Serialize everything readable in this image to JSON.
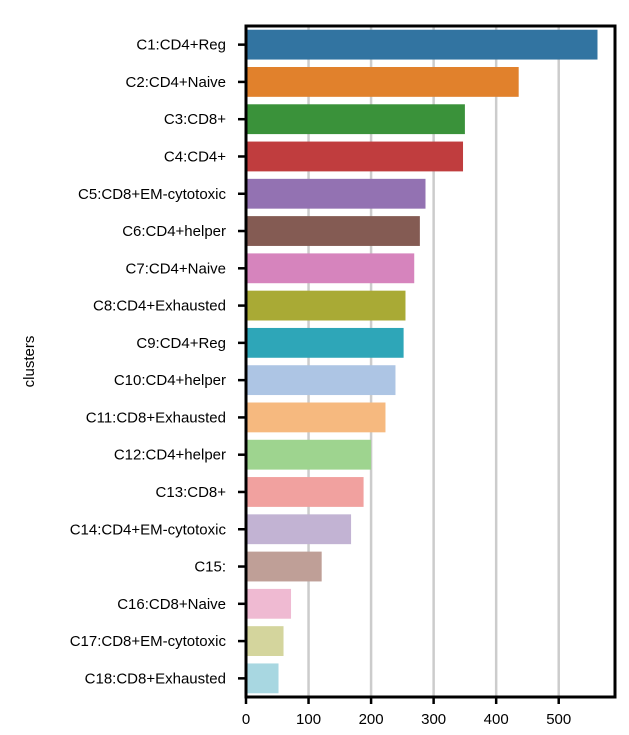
{
  "chart_data": {
    "type": "bar",
    "orientation": "horizontal",
    "ylabel": "clusters",
    "xlabel": "",
    "xlim": [
      0,
      590
    ],
    "xticks": [
      0,
      100,
      200,
      300,
      400,
      500
    ],
    "grid": "vertical",
    "categories": [
      "C1:CD4+Reg",
      "C2:CD4+Naive",
      "C3:CD8+",
      "C4:CD4+",
      "C5:CD8+EM-cytotoxic",
      "C6:CD4+helper",
      "C7:CD4+Naive",
      "C8:CD4+Exhausted",
      "C9:CD4+Reg",
      "C10:CD4+helper",
      "C11:CD8+Exhausted",
      "C12:CD4+helper",
      "C13:CD8+",
      "C14:CD4+EM-cytotoxic",
      "C15:",
      "C16:CD8+Naive",
      "C17:CD8+EM-cytotoxic",
      "C18:CD8+Exhausted"
    ],
    "values": [
      562,
      436,
      350,
      347,
      287,
      278,
      269,
      255,
      252,
      239,
      223,
      200,
      188,
      168,
      121,
      72,
      60,
      52
    ],
    "colors": [
      "#3274a1",
      "#e1812c",
      "#3a923a",
      "#c03d3e",
      "#9372b2",
      "#845b53",
      "#d684bd",
      "#a9aa35",
      "#2ea6b8",
      "#adc5e4",
      "#f6b97f",
      "#9ed48f",
      "#f1a19f",
      "#c2b3d3",
      "#bf9f97",
      "#efbad2",
      "#d4d59d",
      "#a8d7e1"
    ]
  }
}
